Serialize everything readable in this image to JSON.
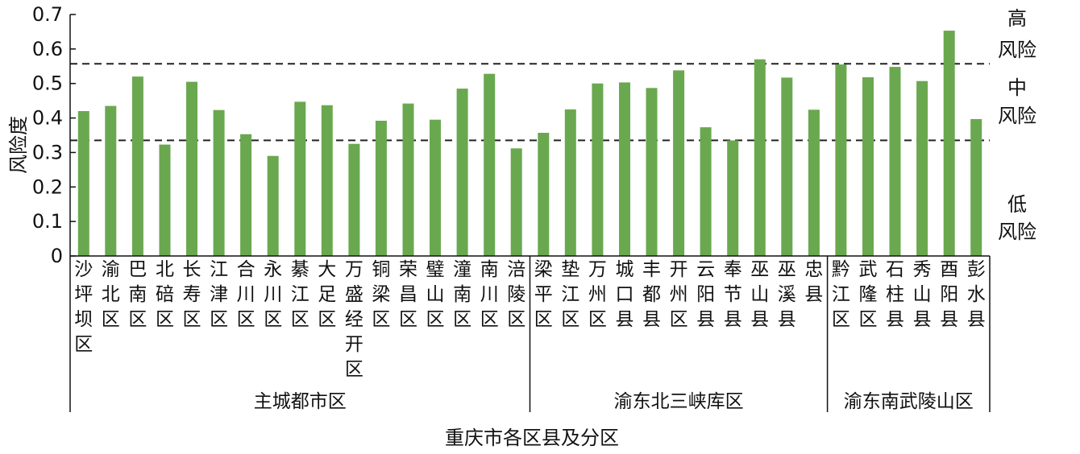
{
  "chart_data": {
    "type": "bar",
    "categories": [
      "沙坪坝区",
      "渝北区",
      "巴南区",
      "北碚区",
      "长寿区",
      "江津区",
      "合川区",
      "永川区",
      "綦江区",
      "大足区",
      "万盛经开区",
      "铜梁区",
      "荣昌区",
      "璧山区",
      "潼南区",
      "南川区",
      "涪陵区",
      "梁平区",
      "垫江区",
      "万州区",
      "城口县",
      "丰都县",
      "开州区",
      "云阳县",
      "奉节县",
      "巫山县",
      "巫溪县",
      "忠县",
      "黔江区",
      "武隆区",
      "石柱县",
      "秀山县",
      "酉阳县",
      "彭水县"
    ],
    "values": [
      0.42,
      0.435,
      0.52,
      0.323,
      0.505,
      0.423,
      0.353,
      0.29,
      0.447,
      0.437,
      0.325,
      0.392,
      0.442,
      0.395,
      0.485,
      0.528,
      0.312,
      0.357,
      0.425,
      0.5,
      0.503,
      0.487,
      0.538,
      0.373,
      0.335,
      0.57,
      0.517,
      0.424,
      0.555,
      0.518,
      0.548,
      0.507,
      0.653,
      0.397
    ],
    "groups": [
      {
        "label": "主城都市区",
        "start": 0,
        "end": 16
      },
      {
        "label": "渝东北三峡库区",
        "start": 17,
        "end": 27
      },
      {
        "label": "渝东南武陵山区",
        "start": 28,
        "end": 33
      }
    ],
    "thresholds": [
      {
        "value": 0.557,
        "style": "dashed"
      },
      {
        "value": 0.335,
        "style": "dashed"
      }
    ],
    "risk_labels": [
      {
        "line1": "高",
        "line2": "风险"
      },
      {
        "line1": "中",
        "line2": "风险"
      },
      {
        "line1": "低",
        "line2": "风险"
      }
    ],
    "ylim": [
      0,
      0.7
    ],
    "yticks": [
      "0",
      "0.1",
      "0.2",
      "0.3",
      "0.4",
      "0.5",
      "0.6",
      "0.7"
    ],
    "ylabel": "风险度",
    "xlabel": "重庆市各区县及分区",
    "bar_color": "#6aa84f",
    "title": ""
  }
}
